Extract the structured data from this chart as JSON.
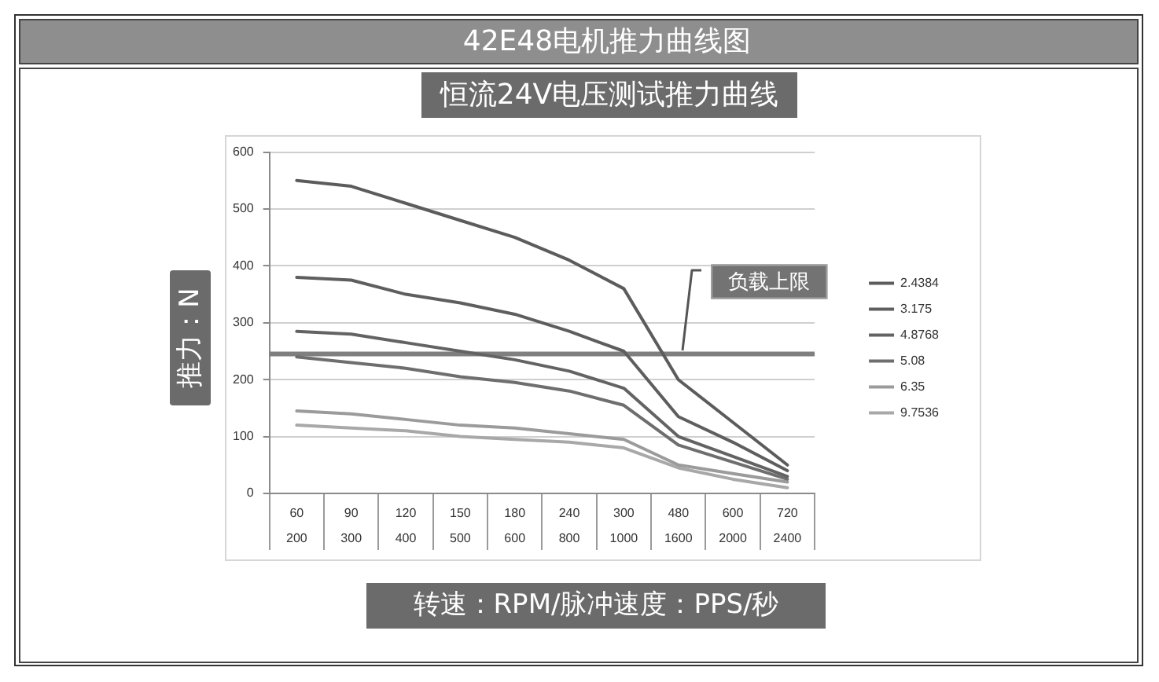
{
  "chart_data": {
    "type": "line",
    "title": "42E48电机推力曲线图",
    "subtitle": "恒流24V电压测试推力曲线",
    "xlabel": "转速：RPM/脉冲速度：PPS/秒",
    "ylabel": "推力：N",
    "categories": [
      "60\n200",
      "90\n300",
      "120\n400",
      "150\n500",
      "180\n600",
      "240\n800",
      "300\n1000",
      "480\n1600",
      "600\n2000",
      "720\n2400"
    ],
    "series": [
      {
        "name": "2.4384",
        "color": "#5c5c5c",
        "values": [
          550,
          540,
          510,
          480,
          450,
          410,
          360,
          200,
          125,
          50
        ]
      },
      {
        "name": "3.175",
        "color": "#5e5e5e",
        "values": [
          380,
          375,
          350,
          335,
          315,
          285,
          250,
          135,
          90,
          40
        ]
      },
      {
        "name": "4.8768",
        "color": "#636363",
        "values": [
          285,
          280,
          265,
          250,
          235,
          215,
          185,
          100,
          65,
          30
        ]
      },
      {
        "name": "5.08",
        "color": "#6e6e6e",
        "values": [
          240,
          230,
          220,
          205,
          195,
          180,
          155,
          85,
          55,
          25
        ]
      },
      {
        "name": "6.35",
        "color": "#9b9b9b",
        "values": [
          145,
          140,
          130,
          120,
          115,
          105,
          95,
          50,
          35,
          20
        ]
      },
      {
        "name": "9.7536",
        "color": "#a8a8a8",
        "values": [
          120,
          115,
          110,
          100,
          95,
          90,
          80,
          45,
          25,
          10
        ]
      }
    ],
    "ylim": [
      0,
      600
    ],
    "yticks": [
      0,
      100,
      200,
      300,
      400,
      500,
      600
    ],
    "grid": "y",
    "legend": "right",
    "marker": "none",
    "line_style": "solid",
    "ref_lines": [
      {
        "axis": "y",
        "value": 245,
        "label": "负载上限",
        "color": "#7f7f7f"
      }
    ]
  }
}
